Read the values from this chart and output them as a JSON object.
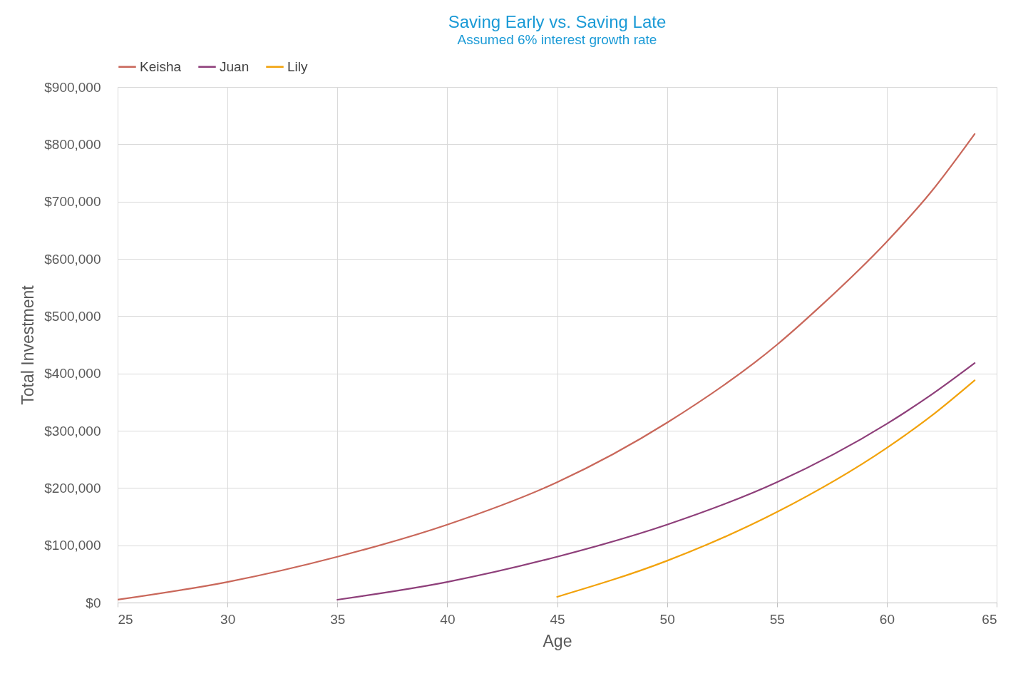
{
  "chart_data": {
    "type": "line",
    "title": "Saving Early vs. Saving Late",
    "subtitle": "Assumed 6% interest growth rate",
    "xlabel": "Age",
    "ylabel": "Total Investment",
    "series": [
      {
        "name": "Keisha",
        "color": "#c9675a",
        "x": [
          25,
          30,
          35,
          40,
          45,
          50,
          55,
          57,
          60,
          62,
          64
        ],
        "values": [
          5000,
          36000,
          80000,
          136000,
          210000,
          314000,
          450000,
          518000,
          630000,
          716000,
          818000
        ]
      },
      {
        "name": "Juan",
        "color": "#8e3f7a",
        "x": [
          35,
          40,
          45,
          50,
          55,
          60,
          62,
          64
        ],
        "values": [
          5000,
          36000,
          80000,
          136000,
          210000,
          312000,
          362000,
          418000
        ]
      },
      {
        "name": "Lily",
        "color": "#f2a20a",
        "x": [
          45,
          50,
          55,
          60,
          62,
          64
        ],
        "values": [
          10000,
          73000,
          158000,
          270000,
          325000,
          388000
        ]
      }
    ],
    "xlim": [
      25,
      65
    ],
    "xticks": [
      25,
      30,
      35,
      40,
      45,
      50,
      55,
      60,
      65
    ],
    "ylim": [
      0,
      900000
    ],
    "yticks": [
      {
        "value": 0,
        "label": "$0"
      },
      {
        "value": 100000,
        "label": "$100,000"
      },
      {
        "value": 200000,
        "label": "$200,000"
      },
      {
        "value": 300000,
        "label": "$300,000"
      },
      {
        "value": 400000,
        "label": "$400,000"
      },
      {
        "value": 500000,
        "label": "$500,000"
      },
      {
        "value": 600000,
        "label": "$600,000"
      },
      {
        "value": 700000,
        "label": "$700,000"
      },
      {
        "value": 800000,
        "label": "$800,000"
      },
      {
        "value": 900000,
        "label": "$900,000"
      }
    ],
    "grid": true,
    "legend": "top",
    "marker": "none",
    "line_style": "solid"
  }
}
